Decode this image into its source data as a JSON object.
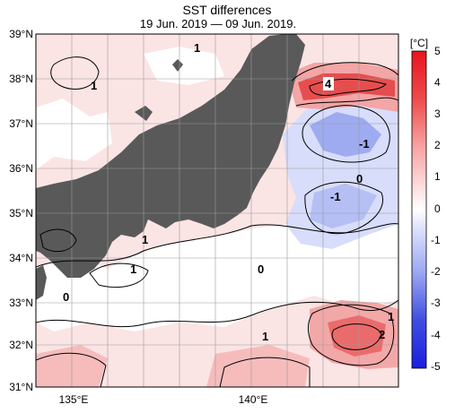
{
  "header": {
    "title": "SST differences",
    "subtitle": "19 Jun. 2019 — 09 Jun. 2019."
  },
  "map": {
    "lat_labels": [
      "39°N",
      "38°N",
      "37°N",
      "36°N",
      "35°N",
      "34°N",
      "33°N",
      "32°N",
      "31°N"
    ],
    "lon_labels": [
      "135°E",
      "140°E"
    ],
    "contour_labels": [
      "1",
      "1",
      "4",
      "-1",
      "-1",
      "0",
      "1",
      "1",
      "0",
      "0",
      "1",
      "2",
      "1"
    ],
    "colors": {
      "land": "#595959",
      "ocean_neutral": "#ffffff",
      "warm_light": "#fbe3e3",
      "warm_mid": "#f4b3b3",
      "warm_strong": "#e64c4c",
      "cool_light": "#dde3fb",
      "cool_mid": "#a9b6f2",
      "cool_strong": "#5c6fe8"
    }
  },
  "colorbar": {
    "unit": "[°C]",
    "ticks": [
      "5",
      "4",
      "3",
      "2",
      "1",
      "0",
      "-1",
      "-2",
      "-3",
      "-4",
      "-5"
    ],
    "colors_top_to_bottom": [
      "#e8141d",
      "#ee4b4b",
      "#f37676",
      "#f7a2a2",
      "#fbcccc",
      "#fde8e8",
      "#ffffff",
      "#e3e6fd",
      "#c4cbf8",
      "#9ba6f2",
      "#6f7ee9",
      "#3f4ee0",
      "#1c1de0"
    ]
  }
}
